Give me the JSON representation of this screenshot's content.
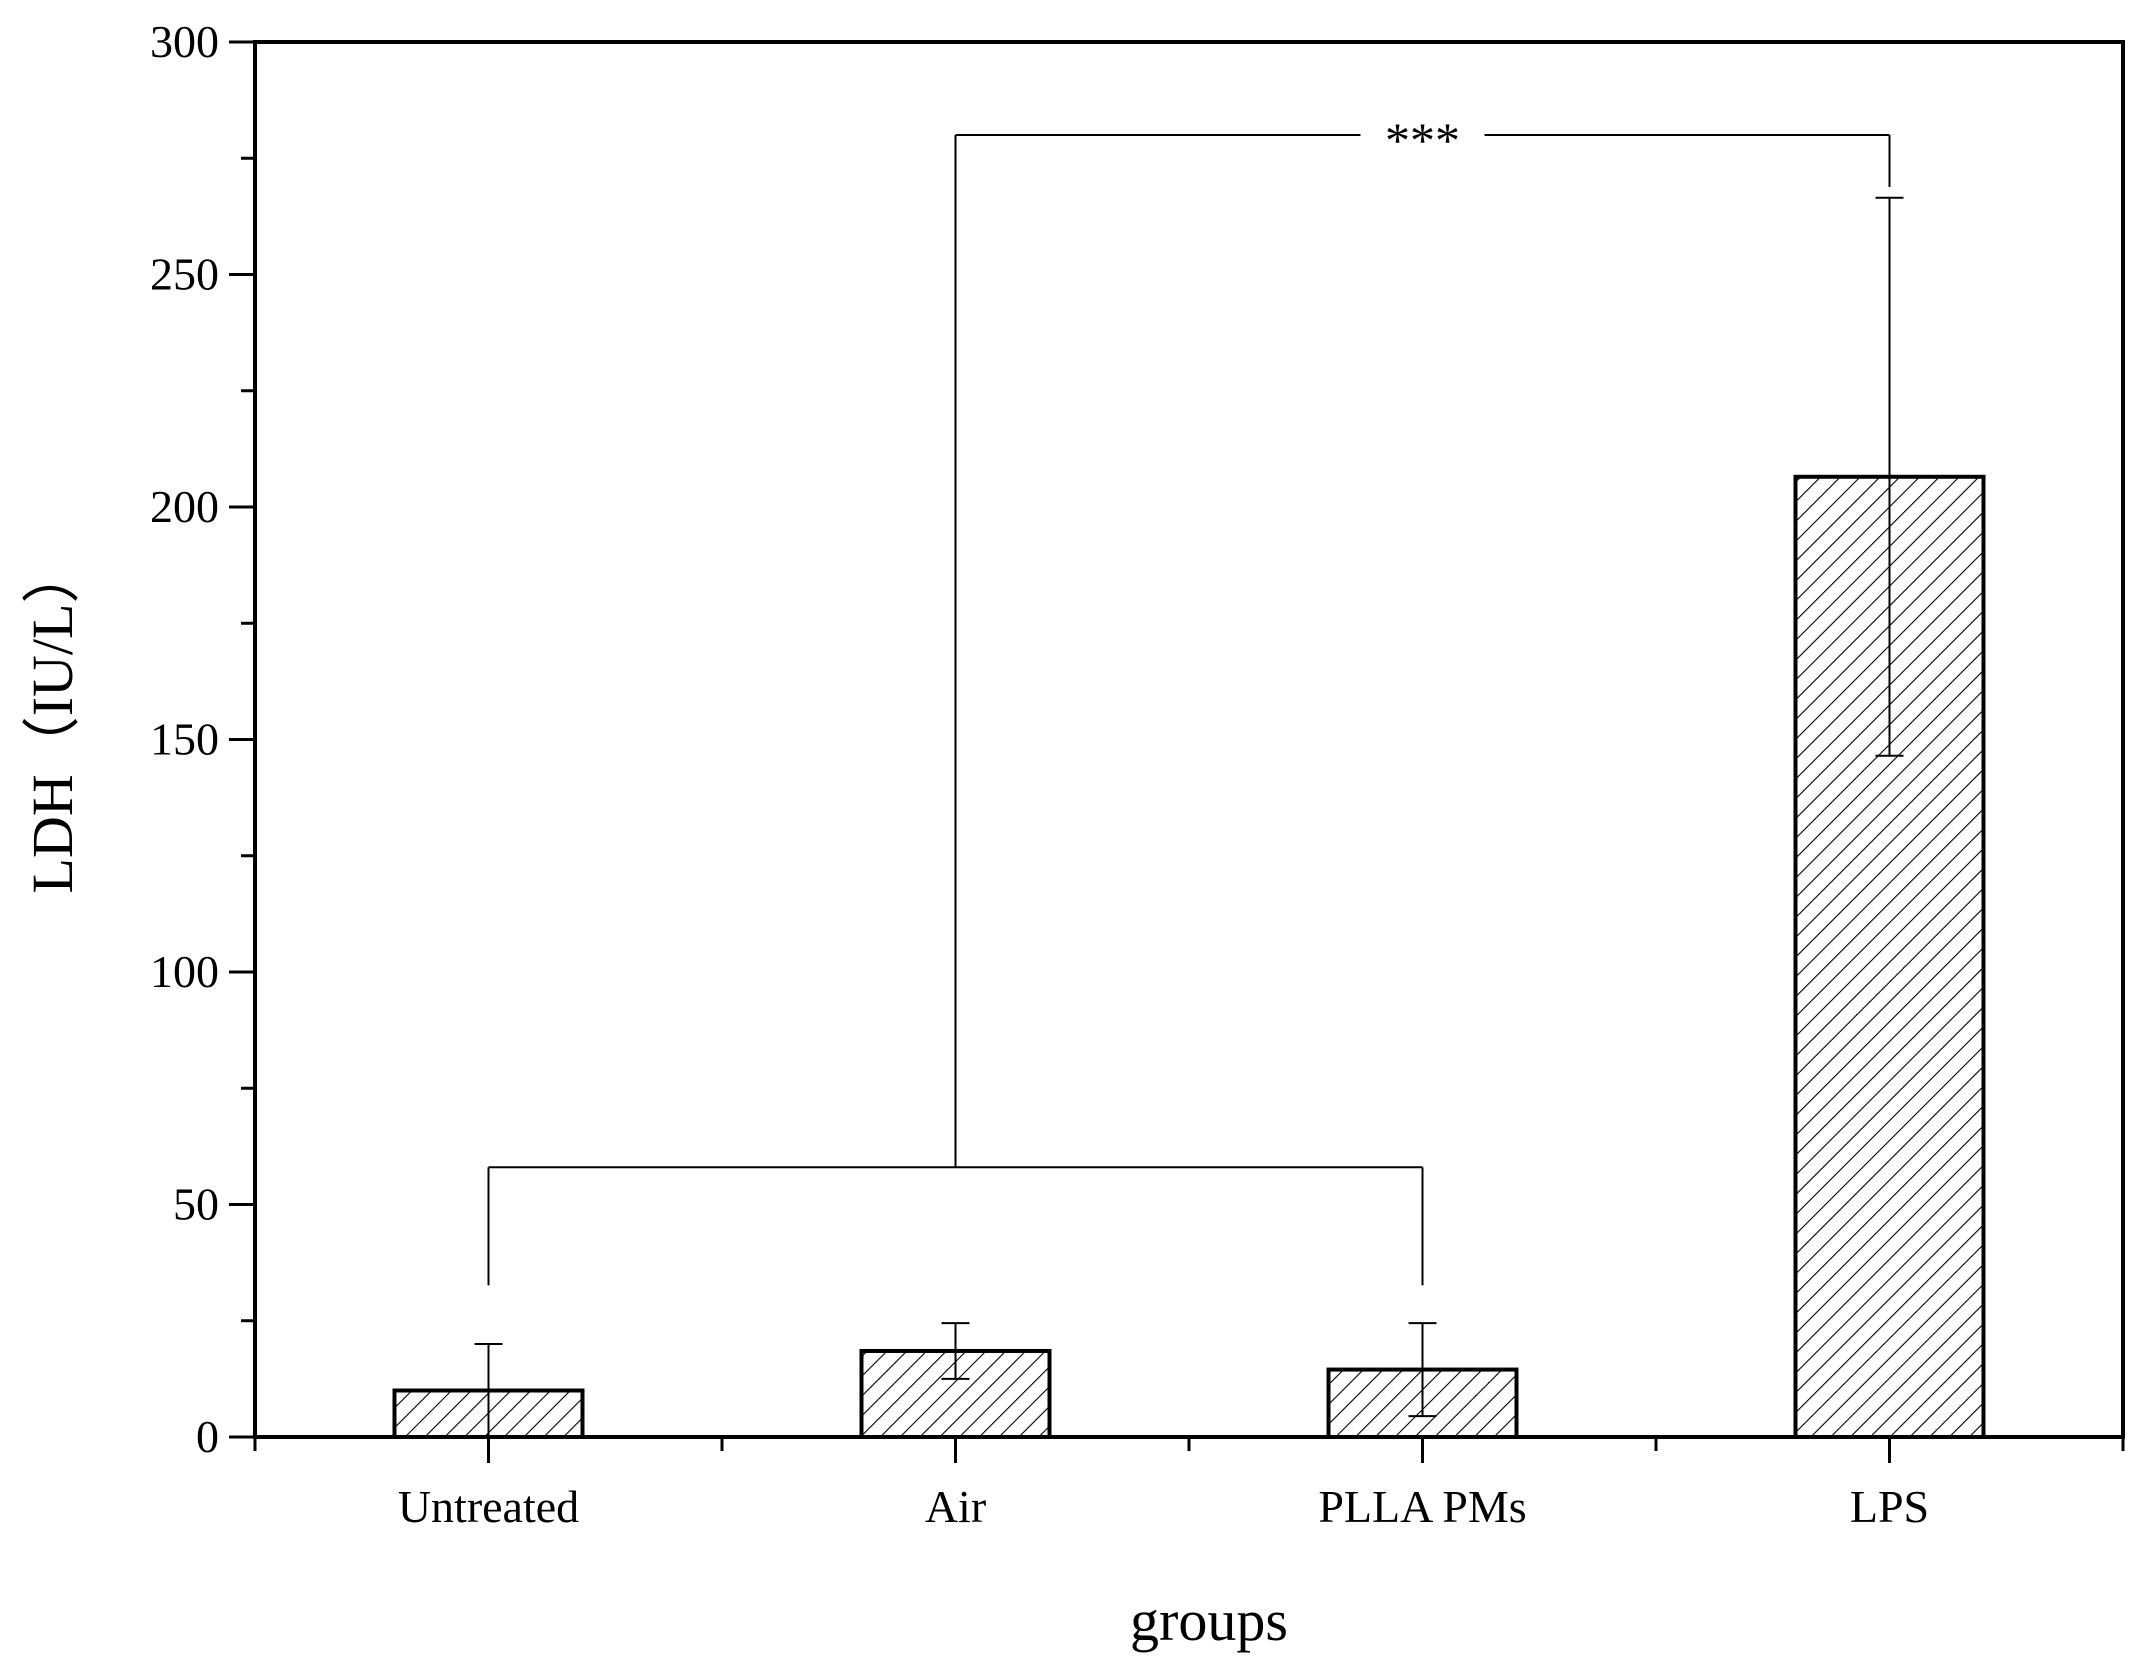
{
  "chart_data": {
    "type": "bar",
    "xlabel": "groups",
    "ylabel": "LDH（IU/L）",
    "categories": [
      "Untreated",
      "Air",
      "PLLA PMs",
      "LPS"
    ],
    "values": [
      10,
      18.5,
      14.5,
      206.5
    ],
    "error": [
      10,
      6,
      10,
      60
    ],
    "ylim": [
      0,
      300
    ],
    "yticks": [
      0,
      50,
      100,
      150,
      200,
      250,
      300
    ],
    "grid": false,
    "legend": "none",
    "bar_fill": "diagonal-hatch",
    "significance": {
      "label": "***",
      "group_a": [
        "Untreated",
        "Air",
        "PLLA PMs"
      ],
      "group_b": [
        "LPS"
      ],
      "group_a_bracket_y": 58,
      "top_bracket_y": 280
    }
  }
}
